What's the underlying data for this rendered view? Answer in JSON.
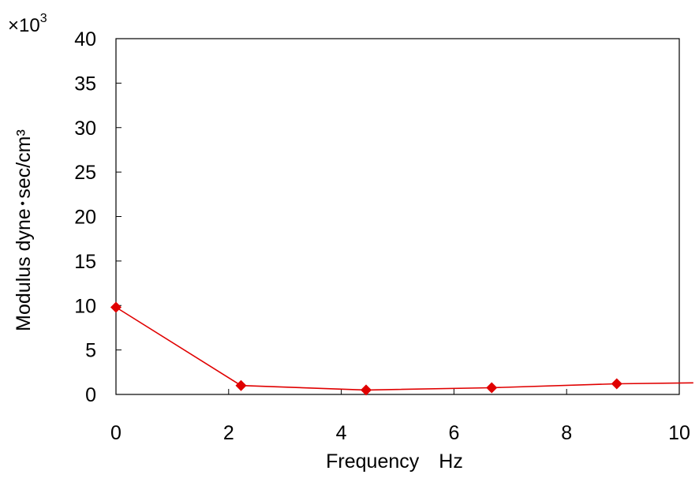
{
  "chart_data": {
    "type": "line",
    "title": "",
    "xlabel": "Frequency　Hz",
    "ylabel": "Modulus dyne･sec/cm³",
    "y_multiplier": {
      "base": "×10",
      "exponent": "3"
    },
    "xlim": [
      0,
      10
    ],
    "ylim": [
      0,
      40
    ],
    "xticks": [
      0,
      2,
      4,
      6,
      8,
      10
    ],
    "yticks": [
      0,
      5,
      10,
      15,
      20,
      25,
      30,
      35,
      40
    ],
    "grid": false,
    "legend": "none",
    "series": [
      {
        "color": "#e00000",
        "marker": "diamond",
        "x": [
          0,
          2.22,
          4.44,
          6.67,
          8.89,
          10.25
        ],
        "y": [
          9.8,
          1.0,
          0.5,
          0.75,
          1.2,
          1.3
        ],
        "marker_visible": [
          true,
          true,
          true,
          true,
          true,
          false
        ]
      }
    ]
  }
}
